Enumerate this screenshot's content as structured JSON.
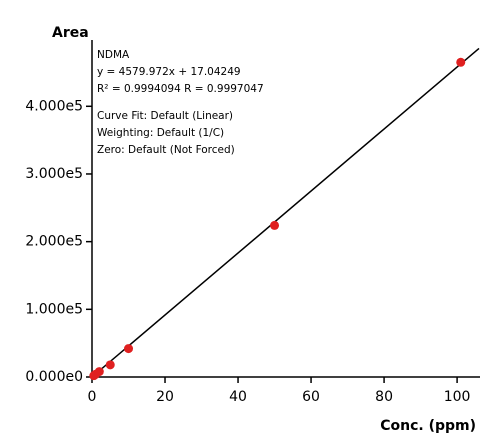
{
  "chart_data": {
    "type": "scatter",
    "y_label": "Area",
    "x_label": "Conc. (ppm)",
    "annotations": [
      "NDMA",
      "y = 4579.972x + 17.04249",
      "R² = 0.9994094    R = 0.9997047",
      "Curve Fit: Default (Linear)",
      "Weighting: Default (1/C)",
      "Zero: Default (Not Forced)"
    ],
    "fit_slope": 4579.972,
    "fit_intercept": 17.04249,
    "fit_color": "#000000",
    "x": [
      0.5,
      1,
      2,
      5,
      10,
      50,
      101
    ],
    "values": [
      2000,
      4000,
      8000,
      18000,
      42000,
      224000,
      465000
    ],
    "color": "#e02020",
    "xlim": [
      0,
      106
    ],
    "xticks": [
      0,
      20,
      40,
      60,
      80,
      100
    ],
    "ylim": [
      0,
      495000
    ],
    "yticks": [
      {
        "value": 0,
        "label": "0.000e0"
      },
      {
        "value": 100000,
        "label": "1.000e5"
      },
      {
        "value": 200000,
        "label": "2.000e5"
      },
      {
        "value": 300000,
        "label": "3.000e5"
      },
      {
        "value": 400000,
        "label": "4.000e5"
      }
    ]
  }
}
